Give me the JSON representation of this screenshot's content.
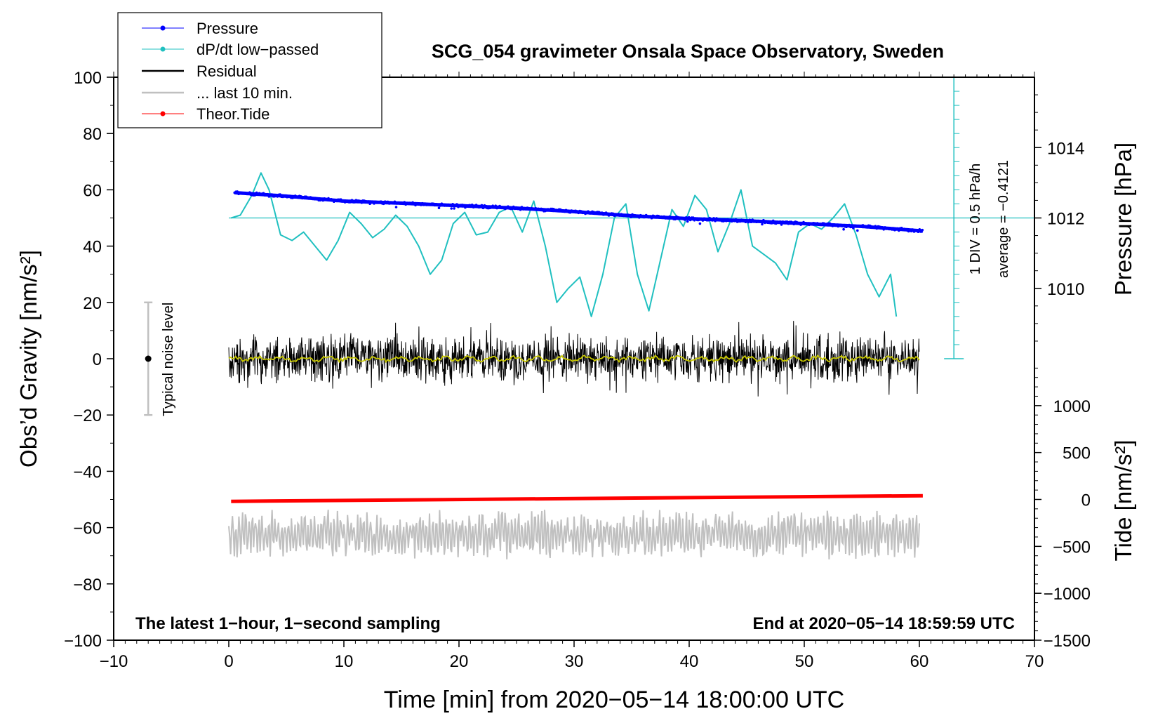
{
  "chart_data": {
    "type": "line",
    "title": "SCG_054 gravimeter Onsala Space Observatory, Sweden",
    "xlabel": "Time [min] from 2020−05−14 18:00:00 UTC",
    "ylabel_left": "Obs’d Gravity [nm/s²]",
    "ylabel_right_pressure": "Pressure [hPa]",
    "ylabel_right_tide": "Tide [nm/s²]",
    "xlim": [
      -10,
      70
    ],
    "ylim": [
      -100,
      100
    ],
    "x_ticks": [
      -10,
      0,
      10,
      20,
      30,
      40,
      50,
      60,
      70
    ],
    "x_tick_labels": [
      "−10",
      "0",
      "10",
      "20",
      "30",
      "40",
      "50",
      "60",
      "70"
    ],
    "y_ticks": [
      -100,
      -80,
      -60,
      -40,
      -20,
      0,
      20,
      40,
      60,
      80,
      100
    ],
    "y_tick_labels": [
      "−100",
      "−80",
      "−60",
      "−40",
      "−20",
      "0",
      "20",
      "40",
      "60",
      "80",
      "100"
    ],
    "pressure_axis": {
      "range": [
        1008.0,
        1016.0
      ],
      "ticks": [
        1010,
        1012,
        1014
      ],
      "tick_labels": [
        "1010",
        "1012",
        "1014"
      ]
    },
    "tide_axis": {
      "range": [
        -1500,
        1500
      ],
      "ticks": [
        -1500,
        -1000,
        -500,
        0,
        500,
        1000
      ],
      "tick_labels": [
        "−1500",
        "−1000",
        "−500",
        "0",
        "500",
        "1000"
      ]
    },
    "legend": {
      "placement": "top-left",
      "entries": [
        "Pressure",
        "dP/dt low−passed",
        "Residual",
        "... last 10 min.",
        "Theor.Tide"
      ]
    },
    "annotations": {
      "bottom_left": "The latest 1−hour, 1−second sampling",
      "bottom_right": "End at 2020−05−14 18:59:59 UTC",
      "noise_label": "Typical noise level",
      "div_label": "1 DIV = 0.5 hPa/h",
      "average_label": "average = −0.4121"
    },
    "noise_bar": {
      "x": -7,
      "center": 0,
      "low": -20,
      "high": 20
    },
    "dpdt_scale": {
      "x": 63,
      "zero": 50,
      "top": 100,
      "bottom": 0,
      "minor_step": 5
    },
    "series": [
      {
        "name": "Pressure",
        "color": "#0000ff",
        "axis": "pressure",
        "x": [
          0.5,
          5,
          10,
          15,
          20,
          25,
          30,
          35,
          40,
          45,
          50,
          55,
          60.3
        ],
        "values": [
          1012.72,
          1012.62,
          1012.48,
          1012.42,
          1012.35,
          1012.28,
          1012.18,
          1012.06,
          1011.98,
          1011.92,
          1011.84,
          1011.76,
          1011.63
        ]
      },
      {
        "name": "dP/dt low−passed",
        "color": "#20c0c0",
        "axis": "left",
        "x": [
          0.2,
          1.0,
          2.0,
          2.8,
          3.5,
          4.5,
          5.5,
          6.5,
          7.5,
          8.5,
          9.5,
          10.5,
          11.5,
          12.5,
          13.5,
          14.5,
          15.5,
          16.5,
          17.5,
          18.5,
          19.5,
          20.5,
          21.5,
          22.5,
          23.5,
          24.5,
          25.5,
          26.5,
          27.5,
          28.5,
          29.5,
          30.5,
          31.5,
          32.5,
          33.5,
          34.5,
          35.5,
          36.5,
          37.5,
          38.5,
          39.5,
          40.5,
          41.5,
          42.5,
          43.5,
          44.5,
          45.5,
          46.5,
          47.5,
          48.5,
          49.5,
          50.5,
          51.5,
          52.5,
          53.5,
          54.5,
          55.5,
          56.5,
          57.5,
          58.0
        ],
        "values": [
          50,
          51,
          58,
          66,
          60,
          44,
          42,
          45,
          40,
          35,
          42,
          52,
          48,
          43,
          46,
          51,
          47,
          40,
          30,
          35,
          48,
          52,
          44,
          45,
          52,
          54,
          45,
          56,
          40,
          20,
          25,
          29,
          15,
          30,
          50,
          55,
          30,
          17,
          35,
          53,
          47,
          58,
          53,
          38,
          48,
          60,
          40,
          37,
          34,
          28,
          45,
          48,
          46,
          50,
          55,
          44,
          30,
          22,
          30,
          15
        ]
      },
      {
        "name": "Residual",
        "color": "#000000",
        "axis": "left",
        "x_range": [
          0,
          60
        ],
        "amplitude_typical": 8,
        "amplitude_max": 15
      },
      {
        "name": "Residual smoothed",
        "color": "#c8c800",
        "axis": "left",
        "x_range": [
          0,
          60
        ],
        "amplitude_typical": 1
      },
      {
        "name": "... last 10 min.",
        "color": "#c0c0c0",
        "axis": "left",
        "x_range": [
          0,
          60
        ],
        "center": -62.5,
        "amplitude_typical": 6,
        "amplitude_max": 10
      },
      {
        "name": "Theor.Tide",
        "color": "#ff0000",
        "axis": "tide",
        "x": [
          0.2,
          60.3
        ],
        "values": [
          -20,
          40
        ]
      }
    ]
  }
}
